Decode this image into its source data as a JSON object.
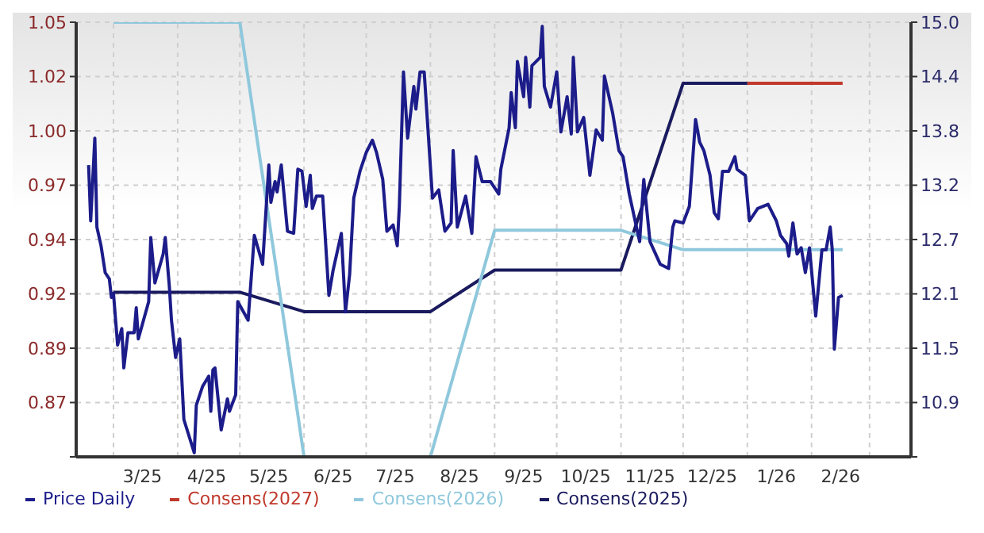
{
  "chart_data": {
    "type": "line",
    "legend": "bottom",
    "grid": true,
    "marker": "none",
    "line_style": "solid",
    "xlim": [
      "2025-02-11",
      "2026-03-21"
    ],
    "xticks": [
      {
        "value": "2025-03-01",
        "label": null
      },
      {
        "value": "2025-03-15",
        "label": "3/25"
      },
      {
        "value": "2025-04-01",
        "label": null
      },
      {
        "value": "2025-04-15",
        "label": "4/25"
      },
      {
        "value": "2025-05-01",
        "label": null
      },
      {
        "value": "2025-05-15",
        "label": "5/25"
      },
      {
        "value": "2025-06-01",
        "label": null
      },
      {
        "value": "2025-06-15",
        "label": "6/25"
      },
      {
        "value": "2025-07-01",
        "label": null
      },
      {
        "value": "2025-07-15",
        "label": "7/25"
      },
      {
        "value": "2025-08-01",
        "label": null
      },
      {
        "value": "2025-08-15",
        "label": "8/25"
      },
      {
        "value": "2025-09-01",
        "label": null
      },
      {
        "value": "2025-09-15",
        "label": "9/25"
      },
      {
        "value": "2025-10-01",
        "label": null
      },
      {
        "value": "2025-10-15",
        "label": "10/25"
      },
      {
        "value": "2025-11-01",
        "label": null
      },
      {
        "value": "2025-11-15",
        "label": "11/25"
      },
      {
        "value": "2025-12-01",
        "label": null
      },
      {
        "value": "2025-12-15",
        "label": "12/25"
      },
      {
        "value": "2026-01-01",
        "label": null
      },
      {
        "value": "2026-01-15",
        "label": "1/26"
      },
      {
        "value": "2026-02-01",
        "label": null
      },
      {
        "value": "2026-02-15",
        "label": "2/26"
      },
      {
        "value": "2026-03-01",
        "label": null
      }
    ],
    "ylim": [
      0.84,
      1.05
    ],
    "yticks": [
      {
        "value": 0.84,
        "label": null
      },
      {
        "value": 0.86625,
        "label": "0.87"
      },
      {
        "value": 0.8925,
        "label": "0.89"
      },
      {
        "value": 0.91875,
        "label": "0.92"
      },
      {
        "value": 0.945,
        "label": "0.94"
      },
      {
        "value": 0.97125,
        "label": "0.97"
      },
      {
        "value": 0.9975,
        "label": "1.00"
      },
      {
        "value": 1.02375,
        "label": "1.02"
      },
      {
        "value": 1.05,
        "label": "1.05"
      }
    ],
    "y2lim": [
      10.3,
      15.0
    ],
    "y2ticks": [
      {
        "value": 10.3,
        "label": null
      },
      {
        "value": 10.8875,
        "label": "10.9"
      },
      {
        "value": 11.475,
        "label": "11.5"
      },
      {
        "value": 12.0625,
        "label": "12.1"
      },
      {
        "value": 12.65,
        "label": "12.7"
      },
      {
        "value": 13.2375,
        "label": "13.2"
      },
      {
        "value": 13.825,
        "label": "13.8"
      },
      {
        "value": 14.4125,
        "label": "14.4"
      },
      {
        "value": 15.0,
        "label": "15.0"
      }
    ],
    "series": [
      {
        "name": "Price Daily",
        "color": "#1c1c8a",
        "x": [
          "2025-02-17",
          "2025-02-18",
          "2025-02-20",
          "2025-02-21",
          "2025-02-23",
          "2025-02-25",
          "2025-02-27",
          "2025-02-28",
          "2025-03-01",
          "2025-03-03",
          "2025-03-05",
          "2025-03-06",
          "2025-03-08",
          "2025-03-11",
          "2025-03-12",
          "2025-03-13",
          "2025-03-18",
          "2025-03-19",
          "2025-03-21",
          "2025-03-25",
          "2025-03-26",
          "2025-03-28",
          "2025-03-29",
          "2025-03-31",
          "2025-04-02",
          "2025-04-04",
          "2025-04-09",
          "2025-04-10",
          "2025-04-13",
          "2025-04-16",
          "2025-04-17",
          "2025-04-18",
          "2025-04-19",
          "2025-04-22",
          "2025-04-25",
          "2025-04-26",
          "2025-04-29",
          "2025-04-30",
          "2025-05-05",
          "2025-05-08",
          "2025-05-12",
          "2025-05-15",
          "2025-05-16",
          "2025-05-18",
          "2025-05-19",
          "2025-05-21",
          "2025-05-24",
          "2025-05-27",
          "2025-05-29",
          "2025-05-31",
          "2025-06-02",
          "2025-06-04",
          "2025-06-05",
          "2025-06-07",
          "2025-06-10",
          "2025-06-13",
          "2025-06-15",
          "2025-06-19",
          "2025-06-21",
          "2025-06-23",
          "2025-06-25",
          "2025-06-28",
          "2025-07-01",
          "2025-07-04",
          "2025-07-06",
          "2025-07-09",
          "2025-07-11",
          "2025-07-14",
          "2025-07-16",
          "2025-07-17",
          "2025-07-19",
          "2025-07-21",
          "2025-07-24",
          "2025-07-25",
          "2025-07-27",
          "2025-07-29",
          "2025-08-02",
          "2025-08-05",
          "2025-08-08",
          "2025-08-11",
          "2025-08-12",
          "2025-08-14",
          "2025-08-18",
          "2025-08-21",
          "2025-08-23",
          "2025-08-26",
          "2025-08-30",
          "2025-09-03",
          "2025-09-04",
          "2025-09-08",
          "2025-09-09",
          "2025-09-11",
          "2025-09-12",
          "2025-09-15",
          "2025-09-16",
          "2025-09-18",
          "2025-09-19",
          "2025-09-23",
          "2025-09-24",
          "2025-09-25",
          "2025-09-28",
          "2025-10-01",
          "2025-10-03",
          "2025-10-06",
          "2025-10-08",
          "2025-10-09",
          "2025-10-11",
          "2025-10-14",
          "2025-10-17",
          "2025-10-20",
          "2025-10-23",
          "2025-10-24",
          "2025-10-28",
          "2025-10-31",
          "2025-11-02",
          "2025-11-05",
          "2025-11-10",
          "2025-11-12",
          "2025-11-15",
          "2025-11-20",
          "2025-11-24",
          "2025-11-26",
          "2025-11-27",
          "2025-12-01",
          "2025-12-04",
          "2025-12-07",
          "2025-12-09",
          "2025-12-11",
          "2025-12-14",
          "2025-12-16",
          "2025-12-18",
          "2025-12-20",
          "2025-12-23",
          "2025-12-26",
          "2025-12-27",
          "2025-12-31",
          "2026-01-02",
          "2026-01-06",
          "2026-01-11",
          "2026-01-15",
          "2026-01-17",
          "2026-01-20",
          "2026-01-21",
          "2026-01-23",
          "2026-01-25",
          "2026-01-27",
          "2026-01-29",
          "2026-01-31",
          "2026-02-03",
          "2026-02-06",
          "2026-02-08",
          "2026-02-10",
          "2026-02-11",
          "2026-02-12",
          "2026-02-14",
          "2026-02-16"
        ],
        "values": [
          0.981,
          0.954,
          0.994,
          0.951,
          0.942,
          0.929,
          0.926,
          0.917,
          0.919,
          0.894,
          0.902,
          0.883,
          0.9,
          0.9,
          0.912,
          0.897,
          0.915,
          0.946,
          0.924,
          0.938,
          0.946,
          0.922,
          0.906,
          0.888,
          0.897,
          0.858,
          0.842,
          0.865,
          0.874,
          0.879,
          0.862,
          0.882,
          0.883,
          0.853,
          0.868,
          0.862,
          0.87,
          0.915,
          0.906,
          0.947,
          0.933,
          0.981,
          0.963,
          0.973,
          0.968,
          0.981,
          0.949,
          0.948,
          0.979,
          0.978,
          0.961,
          0.976,
          0.96,
          0.966,
          0.966,
          0.918,
          0.93,
          0.948,
          0.91,
          0.928,
          0.965,
          0.978,
          0.987,
          0.993,
          0.987,
          0.974,
          0.949,
          0.952,
          0.942,
          0.961,
          1.026,
          0.994,
          1.019,
          1.008,
          1.026,
          1.026,
          0.965,
          0.969,
          0.949,
          0.953,
          0.988,
          0.951,
          0.966,
          0.948,
          0.985,
          0.973,
          0.973,
          0.967,
          0.979,
          0.999,
          1.016,
          0.999,
          1.031,
          1.014,
          1.033,
          1.009,
          1.029,
          1.033,
          1.048,
          1.019,
          1.009,
          1.026,
          0.997,
          1.014,
          0.996,
          1.033,
          0.997,
          1.004,
          0.976,
          0.998,
          0.993,
          1.024,
          1.006,
          0.988,
          0.985,
          0.967,
          0.944,
          0.974,
          0.944,
          0.933,
          0.931,
          0.951,
          0.954,
          0.953,
          0.961,
          1.003,
          0.992,
          0.988,
          0.976,
          0.958,
          0.955,
          0.978,
          0.978,
          0.985,
          0.979,
          0.976,
          0.954,
          0.96,
          0.962,
          0.954,
          0.947,
          0.943,
          0.937,
          0.953,
          0.938,
          0.941,
          0.929,
          0.941,
          0.908,
          0.94,
          0.94,
          0.951,
          0.94,
          0.892,
          0.917,
          0.918
        ]
      },
      {
        "name": "Consens(2027)",
        "color": "#c0392b",
        "axis": "y2",
        "x": [
          "2026-01-01",
          "2026-02-16"
        ],
        "values": [
          14.34,
          14.34
        ]
      },
      {
        "name": "Consens(2026)",
        "color": "#8fc8dc",
        "axis": "y2",
        "x": [
          "2025-03-01",
          "2025-05-01",
          "2025-06-01",
          "2025-08-01",
          "2025-09-01",
          "2025-11-01",
          "2025-12-01",
          "2026-02-16"
        ],
        "values": [
          15.0,
          15.0,
          10.3,
          10.3,
          12.75,
          12.75,
          12.54,
          12.54
        ]
      },
      {
        "name": "Consens(2025)",
        "color": "#1a1a5e",
        "axis": "y2",
        "x": [
          "2025-03-01",
          "2025-05-01",
          "2025-06-01",
          "2025-08-01",
          "2025-09-01",
          "2025-11-01",
          "2025-12-01",
          "2026-01-01"
        ],
        "values": [
          12.08,
          12.08,
          11.87,
          11.87,
          12.32,
          12.32,
          14.34,
          14.34
        ]
      }
    ]
  }
}
